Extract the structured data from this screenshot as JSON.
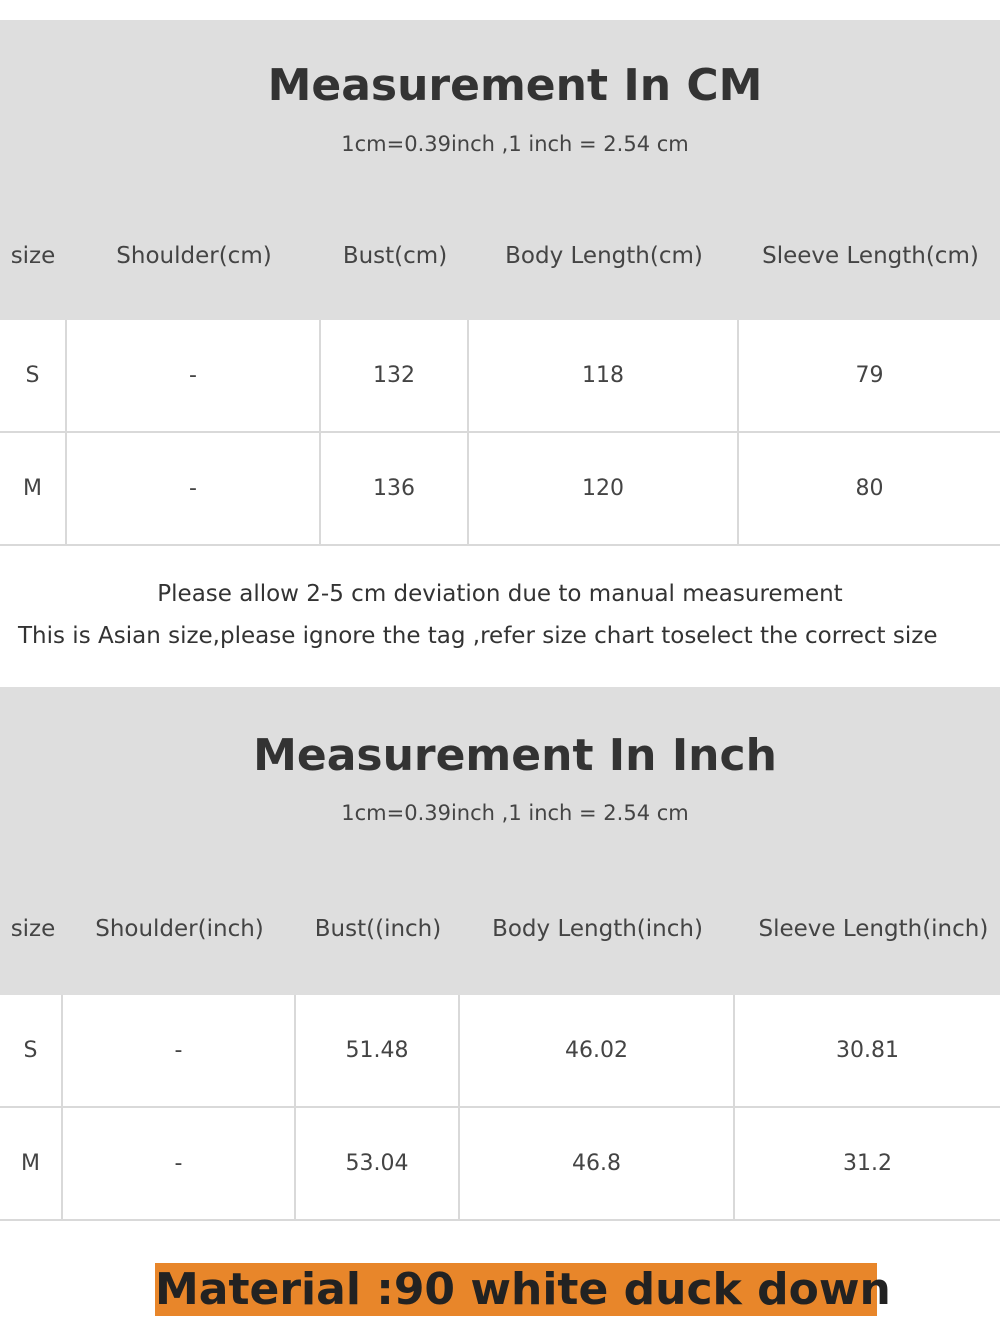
{
  "cm_section": {
    "title": "Measurement In CM",
    "conversion": "1cm=0.39inch ,1 inch = 2.54 cm",
    "headers": [
      "size",
      "Shoulder(cm)",
      "Bust(cm)",
      "Body Length(cm)",
      "Sleeve Length(cm)"
    ],
    "rows": [
      [
        "S",
        "-",
        "132",
        "118",
        "79"
      ],
      [
        "M",
        "-",
        "136",
        "120",
        "80"
      ]
    ]
  },
  "notes": [
    "Please allow 2-5 cm deviation due to manual measurement",
    "This is Asian size,please ignore the tag ,refer size chart toselect the correct size"
  ],
  "inch_section": {
    "title": "Measurement In Inch",
    "conversion": "1cm=0.39inch ,1 inch = 2.54 cm",
    "headers": [
      "size",
      "Shoulder(inch)",
      "Bust((inch)",
      "Body Length(inch)",
      "Sleeve Length(inch)"
    ],
    "rows": [
      [
        "S",
        "-",
        "51.48",
        "46.02",
        "30.81"
      ],
      [
        "M",
        "-",
        "53.04",
        "46.8",
        "31.2"
      ]
    ]
  },
  "material": "Material :90 white duck down",
  "colors": {
    "header_bg": "#dedede",
    "banner": "#e8862a"
  }
}
